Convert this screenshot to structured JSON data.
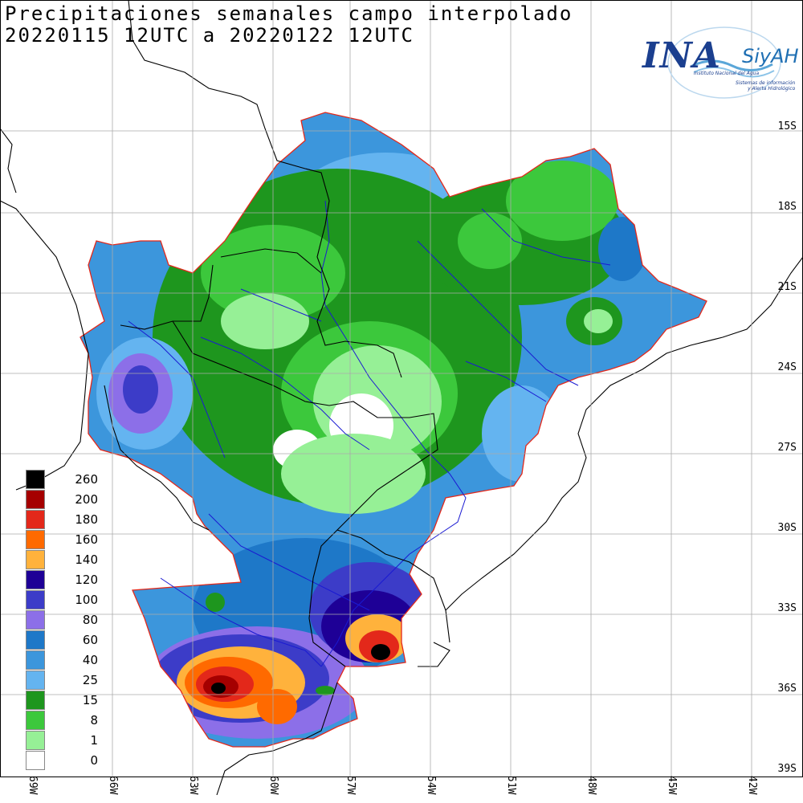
{
  "title": {
    "line1": "Precipitaciones semanales campo interpolado",
    "line2": "20220115 12UTC a 20220122 12UTC"
  },
  "logo": {
    "main": "INA",
    "brand": "SiyAH",
    "subtitle": "Instituto Nacional del Agua",
    "tagline_1": "Sistemas de información",
    "tagline_2": "y Alerta Hidrológico"
  },
  "lat_labels": [
    "15S",
    "18S",
    "21S",
    "24S",
    "27S",
    "30S",
    "33S",
    "36S",
    "39S"
  ],
  "lon_labels": [
    "69W",
    "66W",
    "63W",
    "60W",
    "57W",
    "54W",
    "51W",
    "48W",
    "45W",
    "42W"
  ],
  "legend": [
    {
      "label": "260",
      "color": "#000000"
    },
    {
      "label": "200",
      "color": "#a50000"
    },
    {
      "label": "180",
      "color": "#e3281a"
    },
    {
      "label": "160",
      "color": "#ff6a00"
    },
    {
      "label": "140",
      "color": "#ffb23c"
    },
    {
      "label": "120",
      "color": "#1e0096"
    },
    {
      "label": "100",
      "color": "#3c3cc8"
    },
    {
      "label": "80",
      "color": "#8c6fe8"
    },
    {
      "label": "60",
      "color": "#1e78c8"
    },
    {
      "label": "40",
      "color": "#3c96dc"
    },
    {
      "label": "25",
      "color": "#64b4f0"
    },
    {
      "label": "15",
      "color": "#1e961e"
    },
    {
      "label": "8",
      "color": "#3cc83c"
    },
    {
      "label": "1",
      "color": "#96f096"
    },
    {
      "label": "0",
      "color": "#ffffff"
    }
  ]
}
